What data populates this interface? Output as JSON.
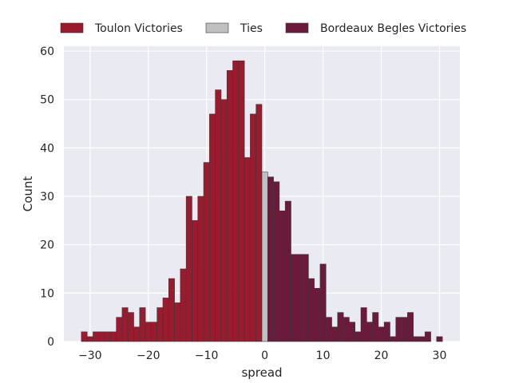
{
  "chart_data": {
    "type": "bar",
    "xlabel": "spread",
    "ylabel": "Count",
    "xlim": [
      -34.5,
      33.5
    ],
    "ylim": [
      0,
      61
    ],
    "xticks": [
      -30,
      -20,
      -10,
      0,
      10,
      20,
      30
    ],
    "yticks": [
      0,
      10,
      20,
      30,
      40,
      50,
      60
    ],
    "grid": true,
    "legend_position": "top",
    "series": [
      {
        "name": "Toulon Victories",
        "color": "#9b1b2e",
        "x": [
          -31,
          -30,
          -29,
          -28,
          -27,
          -26,
          -25,
          -24,
          -23,
          -22,
          -21,
          -20,
          -19,
          -18,
          -17,
          -16,
          -15,
          -14,
          -13,
          -12,
          -11,
          -10,
          -9,
          -8,
          -7,
          -6,
          -5,
          -4,
          -3,
          -2,
          -1
        ],
        "values": [
          2,
          1,
          2,
          2,
          2,
          2,
          5,
          7,
          6,
          3,
          7,
          4,
          4,
          7,
          9,
          13,
          8,
          15,
          30,
          25,
          30,
          37,
          47,
          52,
          50,
          56,
          58,
          58,
          38,
          47,
          49
        ]
      },
      {
        "name": "Ties",
        "color": "#c0c0c0",
        "x": [
          0
        ],
        "values": [
          35
        ]
      },
      {
        "name": "Bordeaux Begles Victories",
        "color": "#6b1a3a",
        "x": [
          1,
          2,
          3,
          4,
          5,
          6,
          7,
          8,
          9,
          10,
          11,
          12,
          13,
          14,
          15,
          16,
          17,
          18,
          19,
          20,
          21,
          22,
          23,
          24,
          25,
          26,
          27,
          28,
          29,
          30
        ],
        "values": [
          34,
          33,
          27,
          29,
          18,
          18,
          18,
          13,
          11,
          16,
          5,
          3,
          6,
          5,
          4,
          2,
          7,
          4,
          6,
          3,
          4,
          1,
          5,
          5,
          6,
          1,
          1,
          2,
          0,
          1
        ]
      }
    ]
  }
}
